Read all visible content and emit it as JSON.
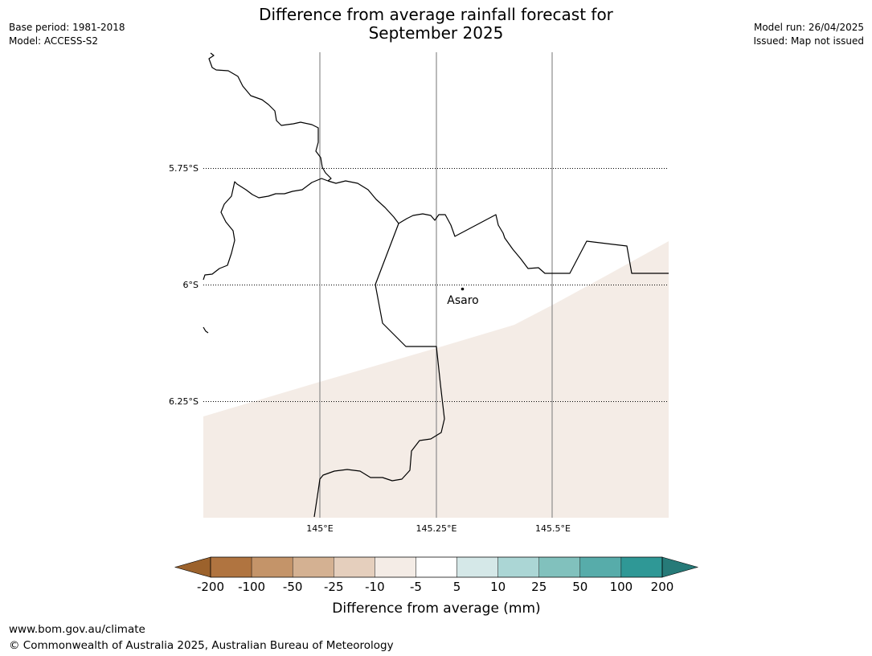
{
  "title": {
    "line1": "Difference from average rainfall forecast for",
    "line2": "September 2025"
  },
  "meta_left": {
    "base_period": "Base period: 1981-2018",
    "model": "Model: ACCESS-S2"
  },
  "meta_right": {
    "model_run": "Model run: 26/04/2025",
    "issued": "Issued: Map not issued"
  },
  "map": {
    "lat_labels": [
      "5.75°S",
      "6°S",
      "6.25°S"
    ],
    "lon_labels": [
      "145°E",
      "145.25°E",
      "145.5°E"
    ],
    "place": "Asaro",
    "shaded_category": "-10 to -5 mm",
    "shade_color": "#f4ece6"
  },
  "legend": {
    "ticks": [
      "-200",
      "-100",
      "-50",
      "-25",
      "-10",
      "-5",
      "5",
      "10",
      "25",
      "50",
      "100",
      "200"
    ],
    "colors": [
      "#9c622c",
      "#b07440",
      "#c49469",
      "#d4b192",
      "#e5cfbd",
      "#f4ece6",
      "#ffffff",
      "#d5e8e8",
      "#abd6d5",
      "#81c1bd",
      "#57acaa",
      "#2f9896",
      "#267a78"
    ],
    "label": "Difference from average (mm)"
  },
  "footer": {
    "url": "www.bom.gov.au/climate",
    "copyright": "© Commonwealth of Australia 2025, Australian Bureau of Meteorology"
  }
}
